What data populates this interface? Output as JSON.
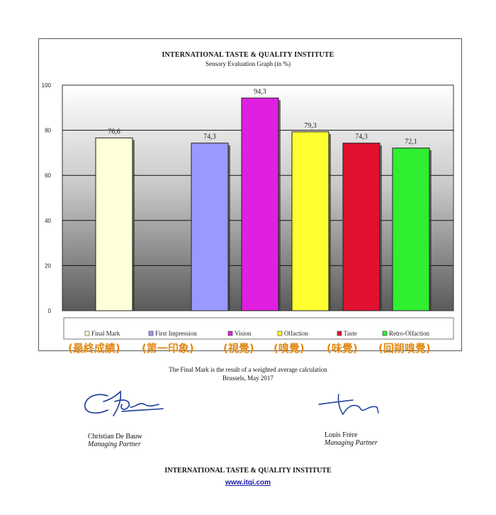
{
  "header": {
    "title": "INTERNATIONAL TASTE & QUALITY INSTITUTE",
    "subtitle": "Sensory Evaluation Graph (in %)"
  },
  "chart_data": {
    "type": "bar",
    "categories": [
      "Final Mark",
      "First Impression",
      "Vision",
      "Olfaction",
      "Taste",
      "Retro-Olfaction"
    ],
    "values": [
      76.6,
      74.3,
      94.3,
      79.3,
      74.3,
      72.1
    ],
    "value_labels": [
      "76,6",
      "74,3",
      "94,3",
      "79,3",
      "74,3",
      "72,1"
    ],
    "colors": [
      "#ffffd8",
      "#9999ff",
      "#e020e0",
      "#ffff30",
      "#e01030",
      "#30ee30"
    ],
    "ylim": [
      0,
      100
    ],
    "yticks": [
      "0",
      "20",
      "40",
      "60",
      "80",
      "100"
    ],
    "legend_position": "bottom",
    "grid": true
  },
  "legend_cjk": [
    "(最終成績)",
    "(第一印象)",
    "(視覺)",
    "(嗅覺)",
    "(味覺)",
    "(回朔嗅覺)"
  ],
  "notes": {
    "calc": "The Final Mark is the result of a weighted average calculation",
    "place_date": "Brussels, May 2017"
  },
  "signatories": [
    {
      "name": "Christian De Bauw",
      "role": "Managing Partner"
    },
    {
      "name": "Louis Frère",
      "role": "Managing Partner"
    }
  ],
  "footer": {
    "title": "INTERNATIONAL TASTE & QUALITY INSTITUTE",
    "link": "www.itqi.com"
  }
}
